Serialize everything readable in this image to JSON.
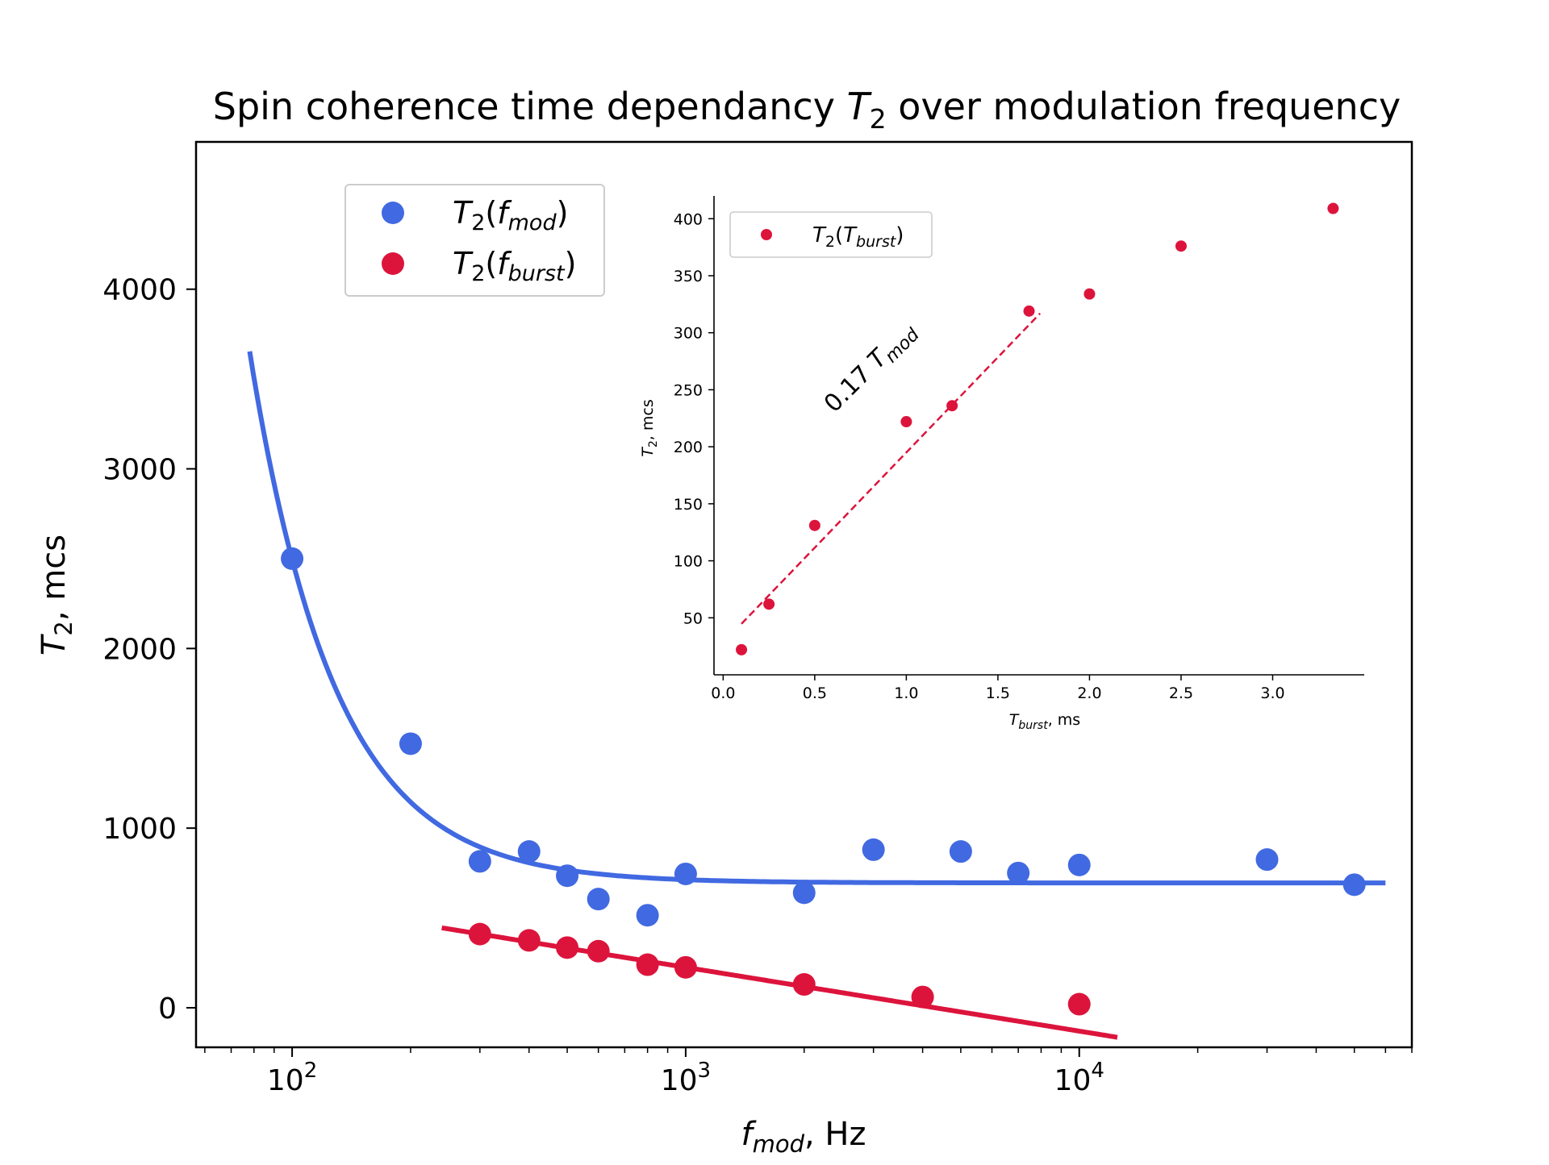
{
  "chart_data": [
    {
      "id": "main",
      "type": "scatter",
      "title_prefix": "Spin coherence time dependancy ",
      "title_var": "T",
      "title_sub": "2",
      "title_suffix": " over modulation frequency",
      "xlabel_var": "f",
      "xlabel_sub": "mod",
      "xlabel_suffix": ", Hz",
      "ylabel_var": "T",
      "ylabel_sub": "2",
      "ylabel_suffix": ", mcs",
      "xscale": "log",
      "xlim": [
        57,
        70000
      ],
      "ylim": [
        -220,
        4820
      ],
      "xticks": [
        {
          "value": 100,
          "label": "10",
          "exp": "2"
        },
        {
          "value": 1000,
          "label": "10",
          "exp": "3"
        },
        {
          "value": 10000,
          "label": "10",
          "exp": "4"
        }
      ],
      "yticks": [
        0,
        1000,
        2000,
        3000,
        4000
      ],
      "legend_position": "upper-left",
      "series": [
        {
          "name_var": "T",
          "name_sub": "2",
          "name_arg_var": "f",
          "name_arg_sub": "mod",
          "color": "#4169e1",
          "points": [
            [
              100,
              2500
            ],
            [
              200,
              1470
            ],
            [
              300,
              815
            ],
            [
              400,
              870
            ],
            [
              500,
              735
            ],
            [
              600,
              605
            ],
            [
              800,
              515
            ],
            [
              1000,
              745
            ],
            [
              2000,
              640
            ],
            [
              3000,
              880
            ],
            [
              5000,
              870
            ],
            [
              7000,
              750
            ],
            [
              10000,
              795
            ],
            [
              30000,
              825
            ],
            [
              50000,
              685
            ]
          ],
          "fit": {
            "model": "a/f^2 + c",
            "a": 18000000,
            "c": 695,
            "x_range": [
              78,
              60000
            ]
          }
        },
        {
          "name_var": "T",
          "name_sub": "2",
          "name_arg_var": "f",
          "name_arg_sub": "burst",
          "color": "#dc143c",
          "points": [
            [
              300,
              410
            ],
            [
              400,
              375
            ],
            [
              500,
              335
            ],
            [
              600,
              315
            ],
            [
              800,
              240
            ],
            [
              1000,
              225
            ],
            [
              2000,
              130
            ],
            [
              4000,
              60
            ],
            [
              10000,
              20
            ]
          ],
          "fit": {
            "model": "linear in log10(f)",
            "slope": -355,
            "intercept": 1290,
            "x_range": [
              240,
              12500
            ]
          }
        }
      ]
    },
    {
      "id": "inset",
      "type": "scatter",
      "xlabel_var": "T",
      "xlabel_sub": "burst",
      "xlabel_suffix": ", ms",
      "ylabel_var": "T",
      "ylabel_sub": "2",
      "ylabel_suffix": ", mcs",
      "xlim": [
        -0.05,
        3.5
      ],
      "ylim": [
        0,
        420
      ],
      "xticks": [
        "0.0",
        "0.5",
        "1.0",
        "1.5",
        "2.0",
        "2.5",
        "3.0"
      ],
      "yticks": [
        "50",
        "100",
        "150",
        "200",
        "250",
        "300",
        "350",
        "400"
      ],
      "legend_position": "upper-left",
      "series": [
        {
          "name_var": "T",
          "name_sub": "2",
          "name_arg_var": "T",
          "name_arg_sub": "burst",
          "color": "#dc143c",
          "points": [
            [
              0.1,
              22
            ],
            [
              0.25,
              62
            ],
            [
              0.5,
              131
            ],
            [
              1.0,
              222
            ],
            [
              1.25,
              236
            ],
            [
              1.67,
              319
            ],
            [
              2.0,
              334
            ],
            [
              2.5,
              376
            ],
            [
              3.33,
              409
            ]
          ]
        }
      ],
      "fit_line": {
        "slope": 167,
        "intercept": 28,
        "x_range": [
          0.1,
          1.73
        ],
        "style": "dashed",
        "color": "#dc143c"
      },
      "annotation": {
        "coef": "0.17 ",
        "var": "T",
        "sub": "mod",
        "x": 0.83,
        "y": 265
      }
    }
  ]
}
